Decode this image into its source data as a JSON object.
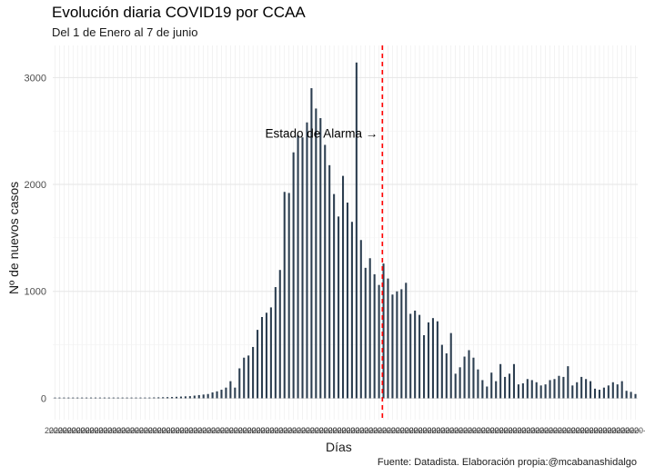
{
  "chart_data": {
    "type": "bar",
    "title": "Evolución diaria COVID19 por CCAA",
    "subtitle": "Del 1 de Enero al 7 de junio",
    "xlabel": "Días",
    "ylabel": "Nº de nuevos casos",
    "caption": "Fuente: Datadista. Elaboración propia:@mcabanashidalgo",
    "ylim": [
      -200,
      3300
    ],
    "yticks": [
      0,
      1000,
      2000,
      3000
    ],
    "grid": true,
    "bar_color": "#2c3e50",
    "annotation": {
      "text": "Estado de Alarma →",
      "vline_index": 73,
      "vline_color": "#ff0000",
      "text_y": 2480
    },
    "x_tick_label": "2020-",
    "values": [
      0,
      0,
      0,
      0,
      0,
      0,
      0,
      0,
      0,
      0,
      1,
      1,
      2,
      2,
      3,
      3,
      4,
      4,
      5,
      5,
      6,
      7,
      8,
      9,
      10,
      11,
      12,
      14,
      16,
      18,
      20,
      25,
      30,
      35,
      40,
      55,
      65,
      80,
      100,
      160,
      100,
      280,
      380,
      400,
      480,
      640,
      760,
      800,
      850,
      1040,
      1200,
      1930,
      1920,
      2300,
      2460,
      2440,
      2580,
      2900,
      2710,
      2620,
      2370,
      2180,
      1910,
      1700,
      2080,
      1830,
      1650,
      3140,
      1480,
      1220,
      1310,
      1160,
      1060,
      1260,
      1120,
      970,
      1000,
      1020,
      1080,
      790,
      820,
      780,
      590,
      710,
      750,
      720,
      500,
      420,
      610,
      230,
      290,
      390,
      450,
      380,
      270,
      170,
      110,
      240,
      160,
      320,
      200,
      230,
      320,
      130,
      140,
      180,
      170,
      150,
      120,
      130,
      170,
      180,
      210,
      200,
      300,
      120,
      150,
      200,
      180,
      160,
      90,
      80,
      100,
      120,
      150,
      130,
      160,
      70,
      60,
      40
    ]
  }
}
